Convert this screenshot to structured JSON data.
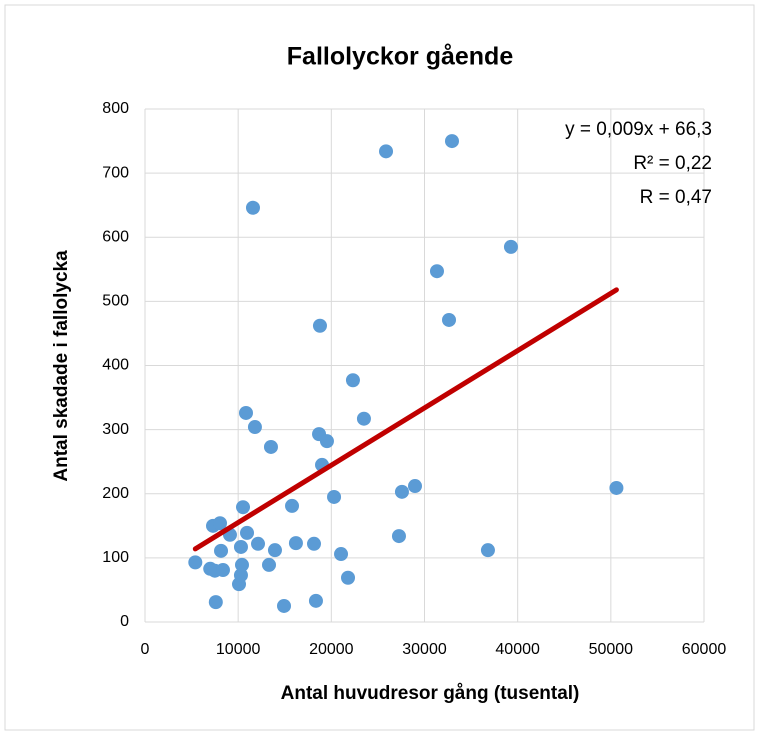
{
  "chart_data": {
    "type": "scatter",
    "title": "Fallolyckor gående",
    "x_label": "Antal huvudresor gång (tusental)",
    "y_label": "Antal skadade i fallolycka",
    "annotations": [
      "y = 0,009x + 66,3",
      "R² = 0,22",
      "R = 0,47"
    ],
    "series": [
      {
        "color": "#5b9bd5",
        "x": [
          5400,
          7000,
          7300,
          8050,
          7500,
          7600,
          8160,
          8370,
          9120,
          10090,
          10300,
          10410,
          10300,
          10520,
          10840,
          10950,
          11800,
          11590,
          12130,
          13520,
          13310,
          13950,
          14920,
          15780,
          16200,
          18140,
          18350,
          18680,
          18780,
          19000,
          19530,
          20290,
          21040,
          21790,
          22320,
          23500,
          25870,
          27260,
          27580,
          28980,
          31340,
          32630,
          32950,
          36810,
          39280,
          50600
        ],
        "values": [
          93,
          83,
          150,
          154,
          80,
          31,
          111,
          81,
          136,
          59,
          73,
          89,
          117,
          179,
          326,
          139,
          304,
          646,
          122,
          273,
          89,
          112,
          25,
          181,
          123,
          122,
          33,
          293,
          462,
          245,
          282,
          195,
          106,
          69,
          377,
          317,
          734,
          134,
          203,
          212,
          547,
          471,
          750,
          112,
          585,
          209
        ]
      }
    ],
    "trendline": {
      "color": "#c00000",
      "x": [
        5400,
        50600
      ],
      "values": [
        114,
        518
      ]
    },
    "xlim": [
      0,
      60000
    ],
    "xticks": [
      0,
      10000,
      20000,
      30000,
      40000,
      50000,
      60000
    ],
    "ylim": [
      0,
      800
    ],
    "yticks": [
      0,
      100,
      200,
      300,
      400,
      500,
      600,
      700,
      800
    ],
    "grid": true
  }
}
